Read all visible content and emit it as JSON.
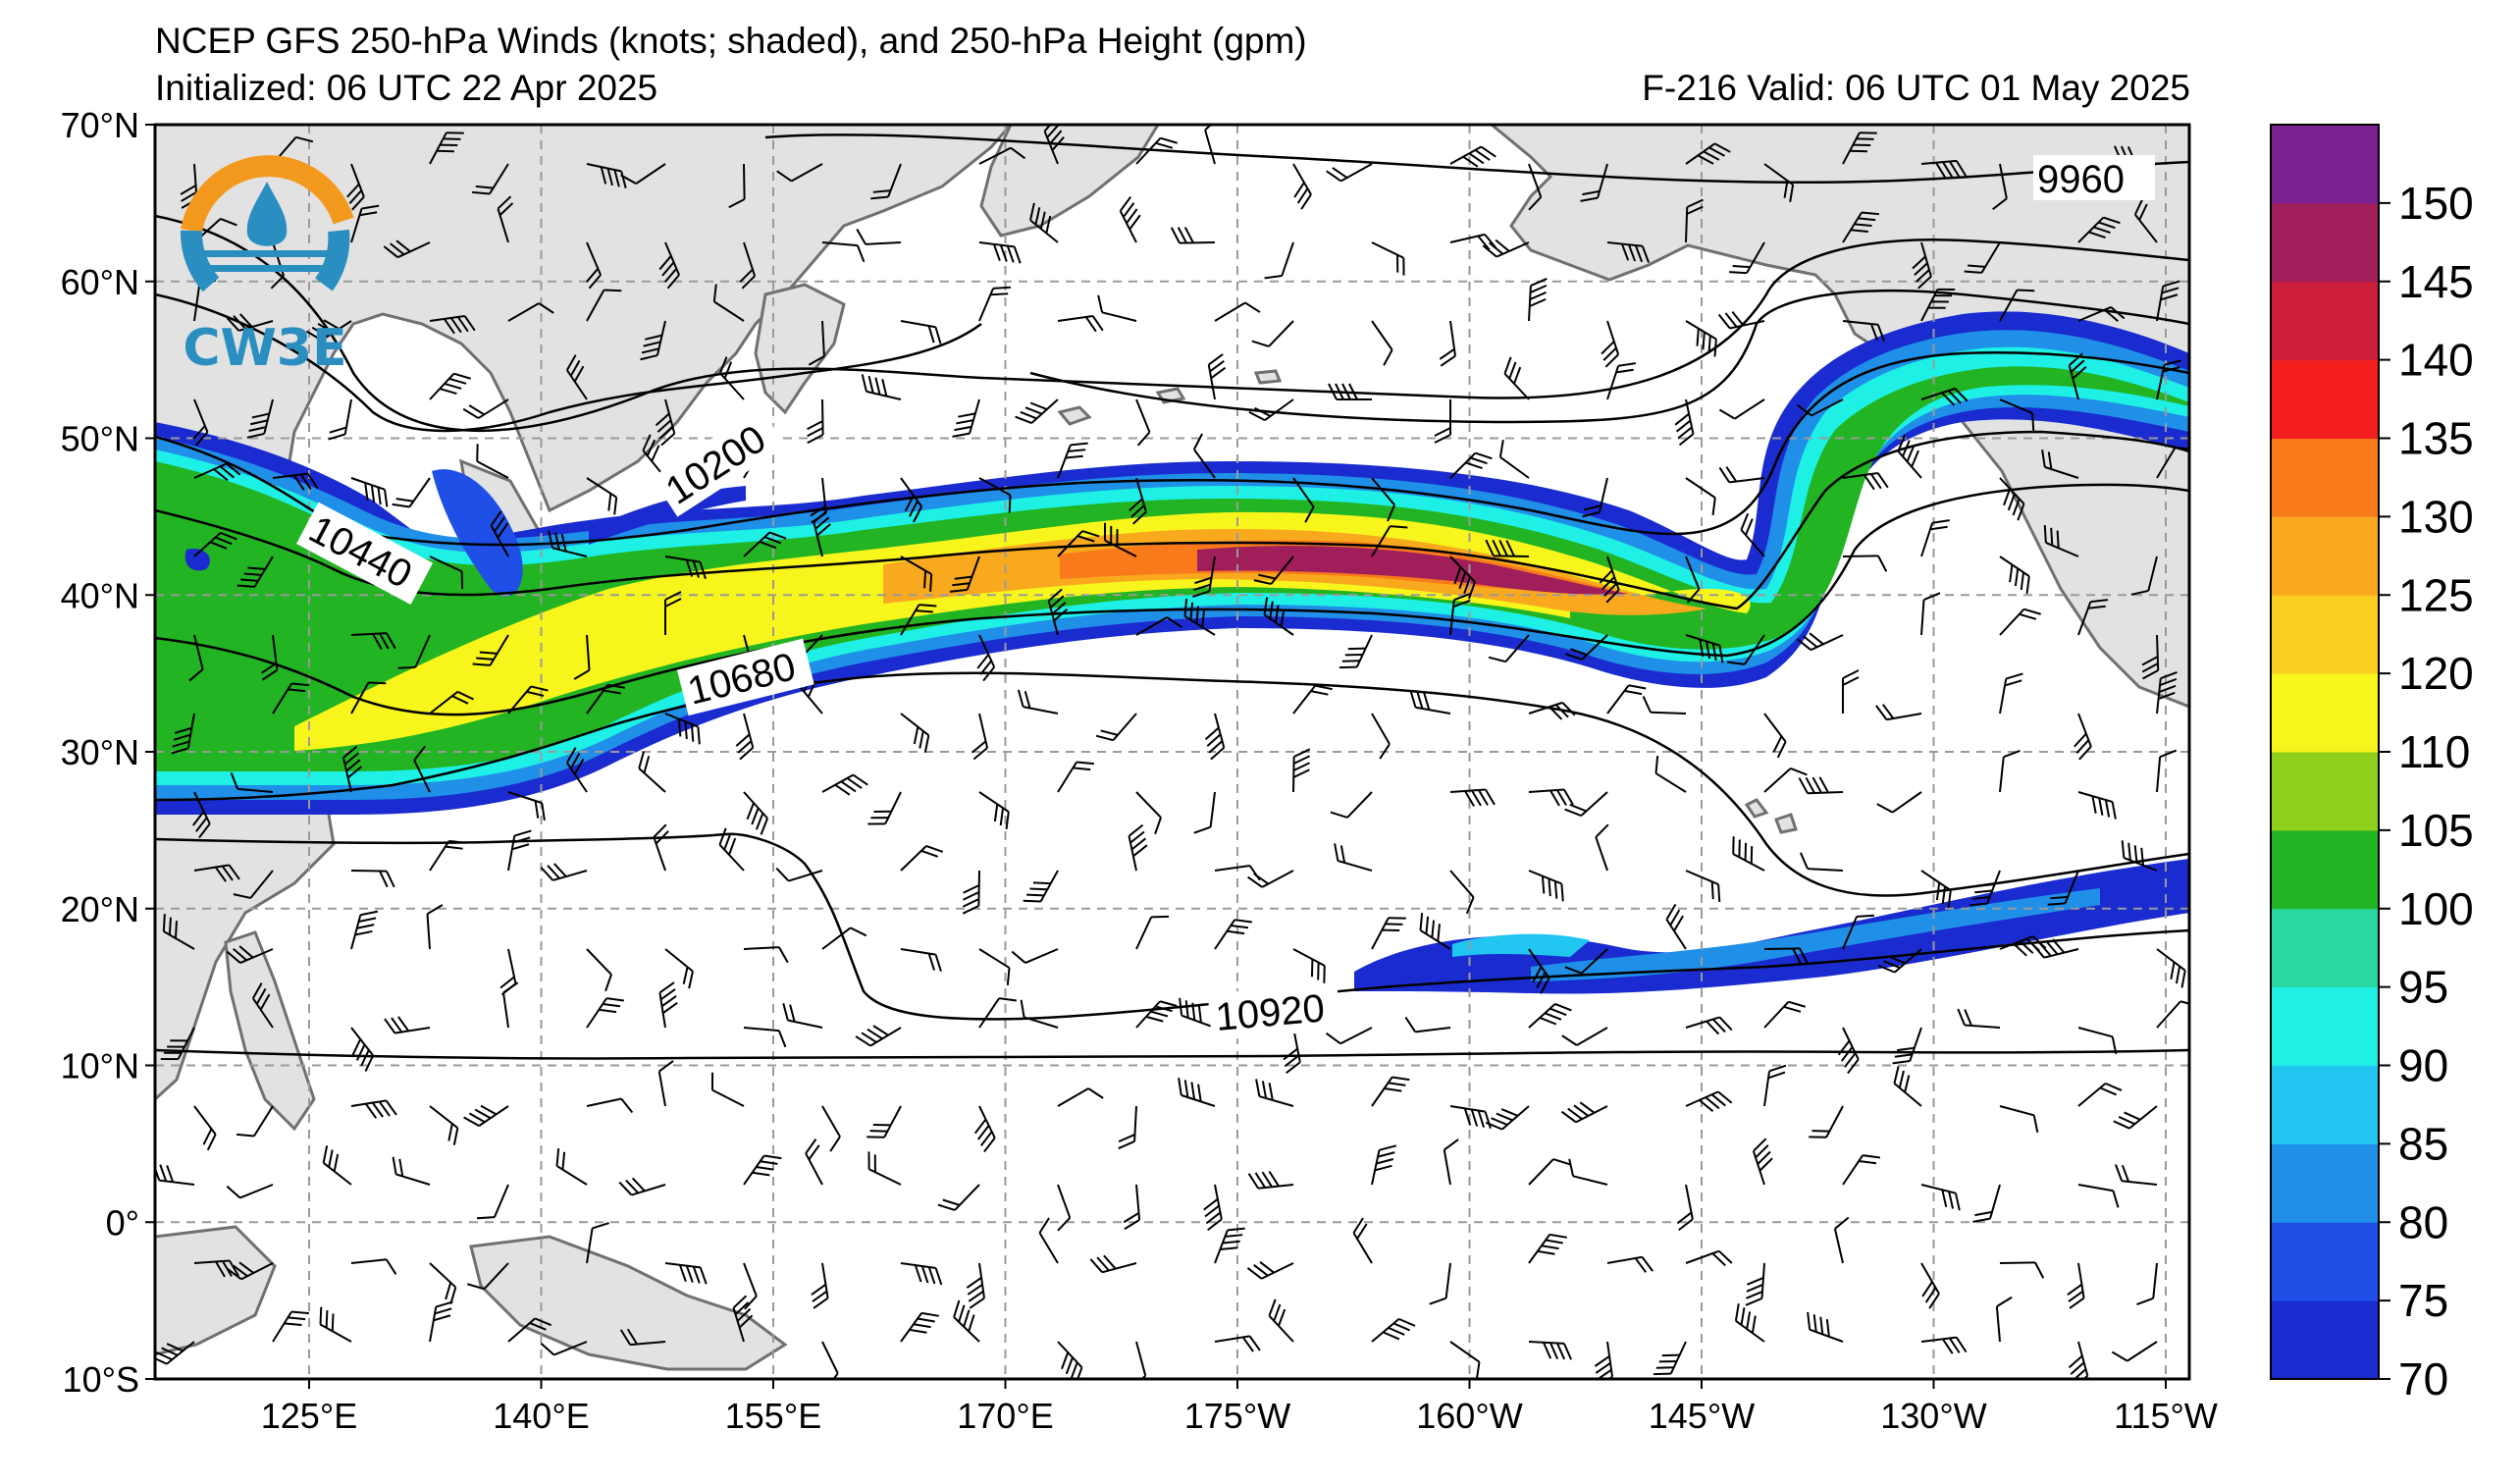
{
  "header": {
    "title": "NCEP GFS 250-hPa Winds (knots; shaded), and 250-hPa Height (gpm)",
    "initialized": "Initialized: 06 UTC 22 Apr 2025",
    "valid": "F-216  Valid: 06 UTC 01 May 2025"
  },
  "logo": {
    "text": "CW3E"
  },
  "axes": {
    "lat_labels": [
      "70°N",
      "60°N",
      "50°N",
      "40°N",
      "30°N",
      "20°N",
      "10°N",
      "0°",
      "10°S"
    ],
    "lon_labels": [
      "125°E",
      "140°E",
      "155°E",
      "170°E",
      "175°W",
      "160°W",
      "145°W",
      "130°W",
      "115°W"
    ]
  },
  "height_contour_labels": [
    "9960",
    "10200",
    "10440",
    "10680",
    "10920"
  ],
  "colorbar": {
    "title": "",
    "tick_labels": [
      "70",
      "75",
      "80",
      "85",
      "90",
      "95",
      "100",
      "105",
      "110",
      "120",
      "125",
      "130",
      "135",
      "140",
      "145",
      "150"
    ],
    "bins": [
      {
        "color": "#1a2ccf"
      },
      {
        "color": "#1f4fe6"
      },
      {
        "color": "#1f8fe8"
      },
      {
        "color": "#21c6f0"
      },
      {
        "color": "#1ef0e6"
      },
      {
        "color": "#2ad7a0"
      },
      {
        "color": "#22b422"
      },
      {
        "color": "#8fd01c"
      },
      {
        "color": "#f8f51c"
      },
      {
        "color": "#fbd020"
      },
      {
        "color": "#f9a91e"
      },
      {
        "color": "#f87a1a"
      },
      {
        "color": "#f41e1e"
      },
      {
        "color": "#cd1e3c"
      },
      {
        "color": "#a01e5a"
      },
      {
        "color": "#7a2090"
      }
    ]
  },
  "colors": {
    "land": "#e2e2e2",
    "coast": "#707070",
    "grid": "#9a9a9a",
    "contour": "#000000"
  }
}
